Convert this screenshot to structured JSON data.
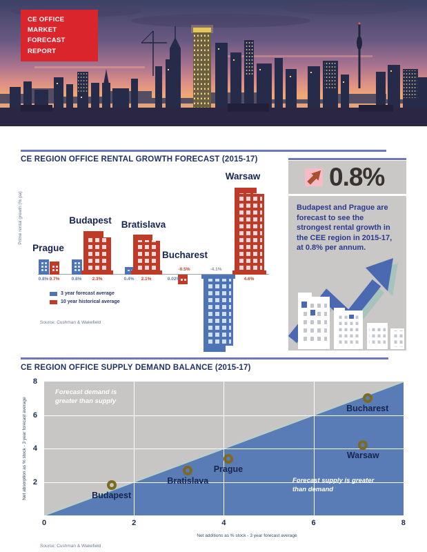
{
  "banner": {
    "line1": "CE OFFICE MARKET",
    "line2": "FORECAST REPORT",
    "bg_color": "#da252d"
  },
  "header_photo": {
    "alt": "city skyline at dusk"
  },
  "sections": {
    "rental": {
      "title": "CE REGION OFFICE RENTAL GROWTH FORECAST (2015-17)"
    },
    "balance": {
      "title": "CE REGION OFFICE SUPPLY DEMAND BALANCE (2015-17)"
    }
  },
  "highlight_panel": {
    "stat": "0.8%",
    "arrow_icon": "up-right-arrow-icon",
    "text": "Budapest and Prague are forecast to see the strongest rental growth in the CEE region in 2015-17, at 0.8% per annum.",
    "accent_color": "#4a69b0",
    "panel_color": "#c9c8c6"
  },
  "chart_data": [
    {
      "type": "bar",
      "title": "CE REGION OFFICE RENTAL GROWTH FORECAST (2015-17)",
      "categories": [
        "Prague",
        "Budapest",
        "Bratislava",
        "Bucharest",
        "Warsaw"
      ],
      "series": [
        {
          "key": "forecast",
          "name": "3 year forecast average",
          "color": "#4f74b5",
          "label_color": "#5b7ab8",
          "values": [
            0.8,
            0.8,
            0.4,
            0.02,
            -4.1
          ]
        },
        {
          "key": "historical",
          "name": "10 year historical average",
          "color": "#bf3a27",
          "label_color": "#c2402c",
          "values": [
            0.7,
            2.3,
            2.1,
            -0.5,
            4.6
          ]
        }
      ],
      "value_labels": [
        "0.8%",
        "0.7%",
        "0.8%",
        "2.3%",
        "0.4%",
        "2.1%",
        "0.02%",
        "-0.5%",
        "-4.1%",
        "4.6%"
      ],
      "ylabel": "Prime rental growth (% pa)",
      "source": "Source: Cushman & Wakefield",
      "ylim": [
        -5,
        5
      ]
    },
    {
      "type": "scatter",
      "title": "CE REGION OFFICE SUPPLY DEMAND BALANCE (2015-17)",
      "points": [
        {
          "label": "Budapest",
          "x": 1.5,
          "y": 1.8
        },
        {
          "label": "Bratislava",
          "x": 3.2,
          "y": 2.7
        },
        {
          "label": "Prague",
          "x": 4.1,
          "y": 3.4
        },
        {
          "label": "Warsaw",
          "x": 7.1,
          "y": 4.2
        },
        {
          "label": "Bucharest",
          "x": 7.2,
          "y": 7.0
        }
      ],
      "xlabel": "Net additions as % stock - 3 year forecast average",
      "ylabel": "Net absorption as % stock - 3 year forecast average",
      "xlim": [
        0,
        8
      ],
      "ylim": [
        0,
        8
      ],
      "xticks": [
        0,
        2,
        4,
        6,
        8
      ],
      "yticks": [
        2,
        4,
        6,
        8
      ],
      "grid": true,
      "annotations": {
        "demand": "Forecast demand is greater than supply",
        "supply": "Forecast supply is greater than demand"
      },
      "regions": {
        "upper_color": "#c7c6c4",
        "lower_color": "#5a7cb6"
      },
      "marker_color": "#7c6a21",
      "source": "Source: Cushman & Wakefield"
    }
  ]
}
